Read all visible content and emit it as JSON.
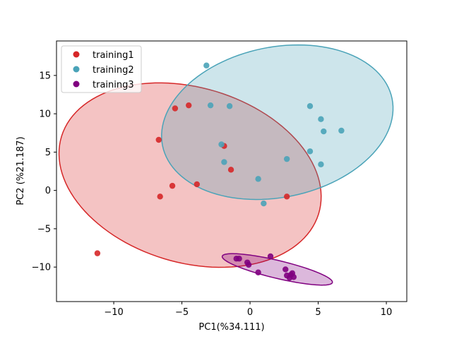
{
  "chart_data": {
    "type": "scatter",
    "title": "",
    "xlabel": "PC1(%34.111)",
    "ylabel": "PC2 (%21.187)",
    "xlim": [
      -14.2,
      11.5
    ],
    "ylim": [
      -14.5,
      19.5
    ],
    "xticks": [
      -10,
      -5,
      0,
      5,
      10
    ],
    "yticks": [
      -10,
      -5,
      0,
      5,
      10,
      15
    ],
    "xtick_labels": [
      "−10",
      "−5",
      "0",
      "5",
      "10"
    ],
    "ytick_labels": [
      "−10",
      "−5",
      "0",
      "5",
      "10",
      "15"
    ],
    "grid": false,
    "legend_position": "top-left",
    "series": [
      {
        "name": "training1",
        "color": "#d62728",
        "points": [
          [
            -11.2,
            -8.2
          ],
          [
            -6.7,
            6.6
          ],
          [
            -6.6,
            -0.8
          ],
          [
            -5.7,
            0.6
          ],
          [
            -5.5,
            10.7
          ],
          [
            -4.5,
            11.1
          ],
          [
            -3.9,
            0.8
          ],
          [
            -1.9,
            5.8
          ],
          [
            -1.4,
            2.7
          ],
          [
            2.7,
            -0.8
          ]
        ],
        "ellipse": {
          "cx": -4.4,
          "cy": 2.0,
          "rx": 9.0,
          "ry": 12.5,
          "angle_deg": 23
        }
      },
      {
        "name": "training2",
        "color": "#4aa3b8",
        "points": [
          [
            -3.2,
            16.3
          ],
          [
            -2.9,
            11.1
          ],
          [
            -1.5,
            11.0
          ],
          [
            -2.1,
            6.0
          ],
          [
            -1.9,
            3.7
          ],
          [
            0.6,
            1.5
          ],
          [
            1.0,
            -1.7
          ],
          [
            2.7,
            4.1
          ],
          [
            4.4,
            11.0
          ],
          [
            4.4,
            5.1
          ],
          [
            5.2,
            9.3
          ],
          [
            5.4,
            7.7
          ],
          [
            6.7,
            7.8
          ],
          [
            5.2,
            3.4
          ]
        ],
        "ellipse": {
          "cx": 2.0,
          "cy": 8.9,
          "rx": 8.1,
          "ry": 10.4,
          "angle_deg": -23
        }
      },
      {
        "name": "training3",
        "color": "#800080",
        "points": [
          [
            -1.0,
            -8.9
          ],
          [
            -0.8,
            -8.9
          ],
          [
            -0.2,
            -9.4
          ],
          [
            -0.1,
            -9.7
          ],
          [
            0.6,
            -10.7
          ],
          [
            1.5,
            -8.6
          ],
          [
            2.6,
            -10.3
          ],
          [
            2.7,
            -11.1
          ],
          [
            3.1,
            -10.8
          ],
          [
            2.9,
            -11.4
          ],
          [
            3.2,
            -11.3
          ],
          [
            3.0,
            -11.0
          ]
        ],
        "ellipse": {
          "cx": 2.0,
          "cy": -10.3,
          "rx": 4.4,
          "ry": 1.1,
          "angle_deg": -24
        }
      }
    ]
  }
}
